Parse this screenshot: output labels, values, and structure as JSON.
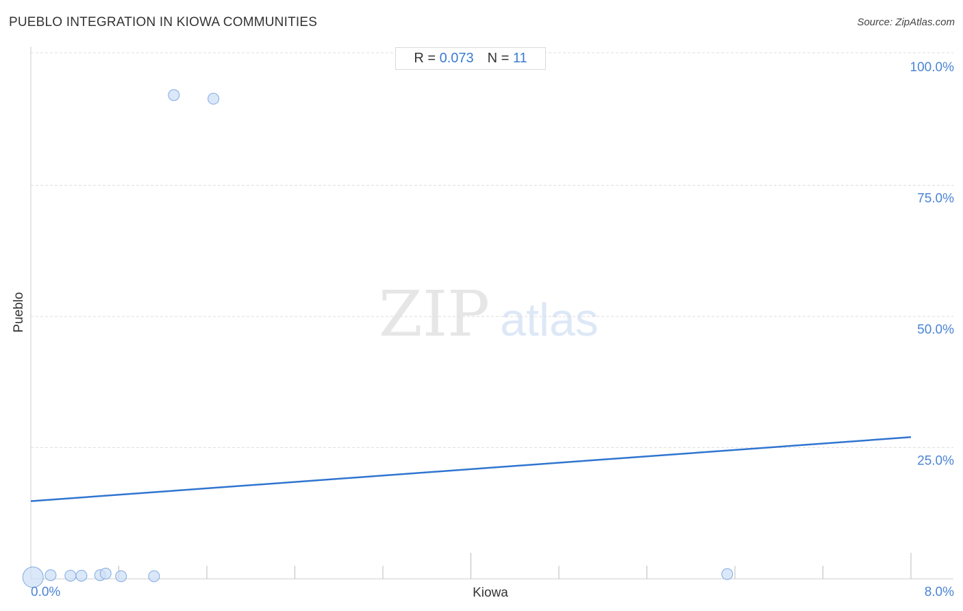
{
  "chart_data": {
    "type": "scatter",
    "title": "PUEBLO INTEGRATION IN KIOWA COMMUNITIES",
    "source": "Source: ZipAtlas.com",
    "xlabel": "Kiowa",
    "ylabel": "Pueblo",
    "xlim": [
      0,
      8
    ],
    "ylim": [
      0,
      100
    ],
    "x_tick_labels": [
      "0.0%",
      "8.0%"
    ],
    "y_ticks": [
      25,
      50,
      75,
      100
    ],
    "y_tick_labels": [
      "25.0%",
      "50.0%",
      "75.0%",
      "100.0%"
    ],
    "grid": true,
    "stats": {
      "r_label": "R =",
      "r_value": "0.073",
      "n_label": "N =",
      "n_value": "11"
    },
    "points": [
      {
        "x": 0.02,
        "y": 0.3,
        "size": "large"
      },
      {
        "x": 0.18,
        "y": 0.3,
        "size": "small"
      },
      {
        "x": 0.36,
        "y": 0.2,
        "size": "small"
      },
      {
        "x": 0.46,
        "y": 0.2,
        "size": "small"
      },
      {
        "x": 0.63,
        "y": 0.3,
        "size": "small"
      },
      {
        "x": 0.68,
        "y": 0.6,
        "size": "small"
      },
      {
        "x": 0.82,
        "y": 0.1,
        "size": "small"
      },
      {
        "x": 1.12,
        "y": 0.1,
        "size": "small"
      },
      {
        "x": 1.3,
        "y": 91.8,
        "size": "small"
      },
      {
        "x": 1.66,
        "y": 91.1,
        "size": "small"
      },
      {
        "x": 6.33,
        "y": 0.5,
        "size": "small"
      }
    ],
    "trendline": {
      "x": [
        0,
        8
      ],
      "y": [
        14.8,
        27.0
      ]
    },
    "colors": {
      "point_fill": "#cfe0f7",
      "point_stroke": "#7fa8e0",
      "trendline": "#2f74d0",
      "tick_label": "#4a84d4",
      "grid": "#dddddd"
    },
    "watermark": {
      "zip": "ZIP",
      "atlas": "atlas"
    }
  }
}
